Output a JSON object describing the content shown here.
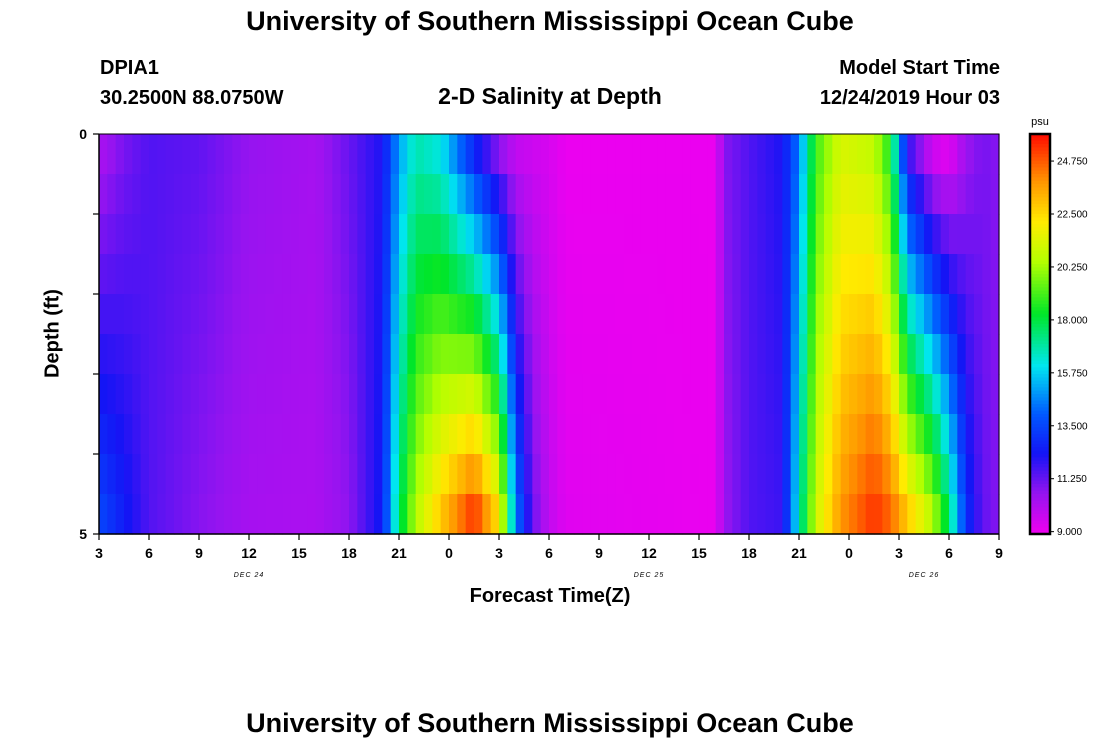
{
  "header": {
    "title": "University of Southern Mississippi Ocean Cube",
    "station_id": "DPIA1",
    "coords": "30.2500N 88.0750W",
    "subtitle": "2-D Salinity at Depth",
    "start_time_label": "Model Start Time",
    "start_time_value": "12/24/2019 Hour 03"
  },
  "footer": {
    "title": "University of Southern Mississippi Ocean Cube"
  },
  "chart_data": {
    "type": "heatmap",
    "title": "2-D Salinity at Depth",
    "xlabel": "Forecast Time(Z)",
    "ylabel": "Depth (ft)",
    "x_ticks": [
      "3",
      "6",
      "9",
      "12",
      "15",
      "18",
      "21",
      "0",
      "3",
      "6",
      "9",
      "12",
      "15",
      "18",
      "21",
      "0",
      "3",
      "6",
      "9"
    ],
    "x_range_hours": [
      3,
      57
    ],
    "date_labels": [
      {
        "text": "DEC 24",
        "hour": 12
      },
      {
        "text": "DEC 25",
        "hour": 36
      },
      {
        "text": "DEC 26",
        "hour": 52.5
      }
    ],
    "y_ticks": [
      "0",
      "5"
    ],
    "y_range": [
      0,
      5
    ],
    "depths": [
      0.25,
      0.75,
      1.25,
      1.75,
      2.25,
      2.75,
      3.25,
      3.75,
      4.25,
      4.75
    ],
    "colorbar": {
      "unit": "psu",
      "min": 8.9,
      "max": 25.9,
      "ticks": [
        "9.000",
        "11.250",
        "13.500",
        "15.750",
        "18.000",
        "20.250",
        "22.500",
        "24.750"
      ]
    },
    "keyframes": [
      {
        "hour": 3,
        "surface": 10.2,
        "bottom": 13.5
      },
      {
        "hour": 4.5,
        "surface": 11.0,
        "bottom": 12.5
      },
      {
        "hour": 6,
        "surface": 11.5,
        "bottom": 11.5
      },
      {
        "hour": 9,
        "surface": 11.3,
        "bottom": 10.8
      },
      {
        "hour": 12,
        "surface": 10.6,
        "bottom": 10.3
      },
      {
        "hour": 16,
        "surface": 10.3,
        "bottom": 10.2
      },
      {
        "hour": 18,
        "surface": 11.2,
        "bottom": 10.7
      },
      {
        "hour": 20,
        "surface": 12.2,
        "bottom": 12.5
      },
      {
        "hour": 21,
        "surface": 15.0,
        "bottom": 17.5
      },
      {
        "hour": 22,
        "surface": 16.8,
        "bottom": 20.5
      },
      {
        "hour": 23.5,
        "surface": 16.2,
        "bottom": 22.8
      },
      {
        "hour": 25.5,
        "surface": 12.8,
        "bottom": 25.3
      },
      {
        "hour": 27,
        "surface": 10.8,
        "bottom": 22.2
      },
      {
        "hour": 28,
        "surface": 9.8,
        "bottom": 14.5
      },
      {
        "hour": 29,
        "surface": 9.6,
        "bottom": 11.2
      },
      {
        "hour": 30,
        "surface": 9.4,
        "bottom": 9.8
      },
      {
        "hour": 31,
        "surface": 9.0,
        "bottom": 9.2
      },
      {
        "hour": 40,
        "surface": 9.0,
        "bottom": 9.0
      },
      {
        "hour": 40.5,
        "surface": 10.8,
        "bottom": 10.5
      },
      {
        "hour": 42,
        "surface": 11.5,
        "bottom": 11.5
      },
      {
        "hour": 44,
        "surface": 12.2,
        "bottom": 11.8
      },
      {
        "hour": 45,
        "surface": 14.5,
        "bottom": 16.5
      },
      {
        "hour": 46,
        "surface": 19.0,
        "bottom": 21.0
      },
      {
        "hour": 47.5,
        "surface": 21.3,
        "bottom": 23.8
      },
      {
        "hour": 49.5,
        "surface": 20.8,
        "bottom": 25.3
      },
      {
        "hour": 50.5,
        "surface": 18.5,
        "bottom": 24.5
      },
      {
        "hour": 51.5,
        "surface": 12.0,
        "bottom": 22.8
      },
      {
        "hour": 53,
        "surface": 9.6,
        "bottom": 20.5
      },
      {
        "hour": 54,
        "surface": 9.2,
        "bottom": 17.5
      },
      {
        "hour": 55,
        "surface": 10.5,
        "bottom": 13.0
      },
      {
        "hour": 56,
        "surface": 11.0,
        "bottom": 11.3
      },
      {
        "hour": 57,
        "surface": 10.8,
        "bottom": 10.8
      }
    ]
  }
}
